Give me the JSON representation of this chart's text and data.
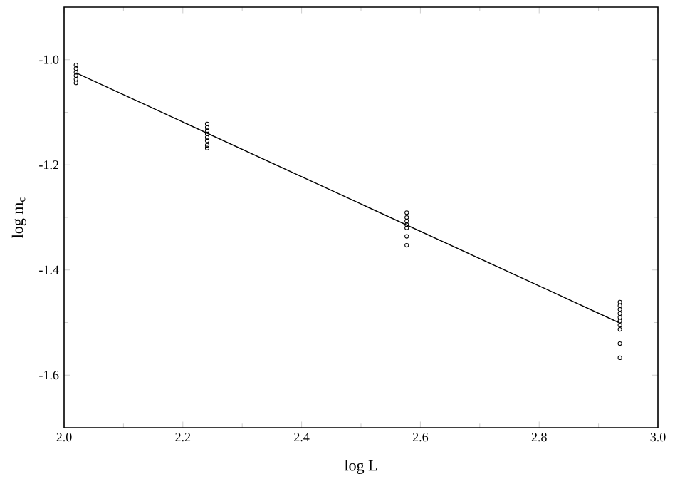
{
  "chart_data": {
    "type": "scatter",
    "xlabel": "log L",
    "ylabel": "log m$_{c}$",
    "xlim": [
      2.0,
      3.0
    ],
    "ylim": [
      -1.7,
      -0.9
    ],
    "xticks": [
      {
        "value": 2.0,
        "label": "2.0"
      },
      2.2,
      2.4,
      2.6,
      2.8,
      {
        "value": 3.0,
        "label": "3.0"
      }
    ],
    "yticks": [
      -1.6,
      -1.4,
      -1.2,
      {
        "value": -1.0,
        "label": "-1.0"
      }
    ],
    "series": [
      {
        "type": "scatter",
        "color": "#000000",
        "marker": "circle",
        "x": [
          2.02,
          2.02,
          2.02,
          2.02,
          2.02,
          2.02,
          2.241,
          2.241,
          2.241,
          2.241,
          2.241,
          2.241,
          2.241,
          2.241,
          2.577,
          2.577,
          2.577,
          2.577,
          2.577,
          2.577,
          2.577,
          2.936,
          2.936,
          2.936,
          2.936,
          2.936,
          2.936,
          2.936,
          2.936,
          2.936,
          2.936
        ],
        "values": [
          -1.01,
          -1.017,
          -1.024,
          -1.03,
          -1.037,
          -1.044,
          -1.122,
          -1.129,
          -1.135,
          -1.141,
          -1.148,
          -1.154,
          -1.163,
          -1.168,
          -1.291,
          -1.3,
          -1.307,
          -1.314,
          -1.32,
          -1.336,
          -1.353,
          -1.461,
          -1.468,
          -1.475,
          -1.483,
          -1.49,
          -1.497,
          -1.505,
          -1.513,
          -1.54,
          -1.567
        ]
      },
      {
        "type": "line",
        "color": "#000000",
        "marker": "none",
        "line_style": "solid",
        "x": [
          2.02,
          2.934
        ],
        "values": [
          -1.025,
          -1.5
        ]
      }
    ]
  }
}
